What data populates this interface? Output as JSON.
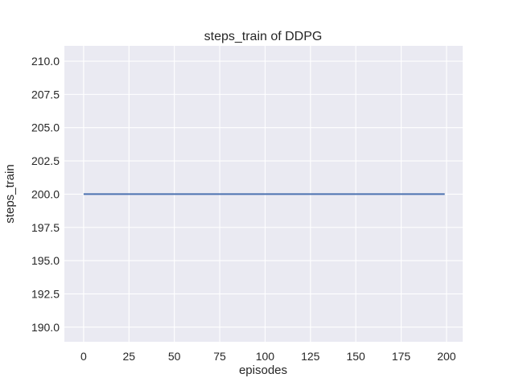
{
  "figure": {
    "background": "#ffffff"
  },
  "chart_data": {
    "type": "line",
    "title": "steps_train of DDPG",
    "xlabel": "episodes",
    "ylabel": "steps_train",
    "xlim": [
      -10.6,
      208.9
    ],
    "ylim": [
      188.9,
      211.15
    ],
    "grid": true,
    "legend": false,
    "x_ticks": [
      {
        "value": 0,
        "label": "0"
      },
      {
        "value": 25,
        "label": "25"
      },
      {
        "value": 50,
        "label": "50"
      },
      {
        "value": 75,
        "label": "75"
      },
      {
        "value": 100,
        "label": "100"
      },
      {
        "value": 125,
        "label": "125"
      },
      {
        "value": 150,
        "label": "150"
      },
      {
        "value": 175,
        "label": "175"
      },
      {
        "value": 200,
        "label": "200"
      }
    ],
    "y_ticks": [
      {
        "value": 190,
        "label": "190.0"
      },
      {
        "value": 192.5,
        "label": "192.5"
      },
      {
        "value": 195,
        "label": "195.0"
      },
      {
        "value": 197.5,
        "label": "197.5"
      },
      {
        "value": 200,
        "label": "200.0"
      },
      {
        "value": 202.5,
        "label": "202.5"
      },
      {
        "value": 205,
        "label": "205.0"
      },
      {
        "value": 207.5,
        "label": "207.5"
      },
      {
        "value": 210,
        "label": "210.0"
      }
    ],
    "style": {
      "axes_bg": "#eaeaf2",
      "grid_color": "#ffffff",
      "text_color": "#262626",
      "line_width": 2
    },
    "series": [
      {
        "name": "steps_train",
        "color": "#4c72b0",
        "x": [
          0,
          199
        ],
        "y": [
          200,
          200
        ]
      }
    ]
  }
}
